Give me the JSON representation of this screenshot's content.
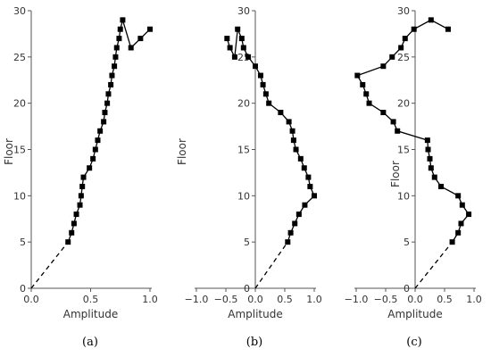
{
  "chart_data": [
    {
      "type": "line",
      "caption": "(a)",
      "xlabel": "Amplitude",
      "ylabel": "Floor",
      "xlim": [
        0,
        1
      ],
      "ylim": [
        0,
        30
      ],
      "xticks": [
        "0.0",
        "0.5",
        "1.0"
      ],
      "yticks": [
        "0",
        "5",
        "10",
        "15",
        "20",
        "25",
        "30"
      ],
      "grid": false,
      "series": [
        {
          "style": "dashed",
          "x": [
            0,
            0.31
          ],
          "y": [
            0,
            5
          ]
        },
        {
          "style": "solid-square-markers",
          "x": [
            0.31,
            0.34,
            0.36,
            0.38,
            0.41,
            0.42,
            0.43,
            0.44,
            0.49,
            0.52,
            0.54,
            0.56,
            0.58,
            0.61,
            0.62,
            0.64,
            0.65,
            0.67,
            0.68,
            0.7,
            0.71,
            0.72,
            0.74,
            0.75,
            0.77,
            0.84,
            0.92,
            1.0
          ],
          "y": [
            5,
            6,
            7,
            8,
            9,
            10,
            11,
            12,
            13,
            14,
            15,
            16,
            17,
            18,
            19,
            20,
            21,
            22,
            23,
            24,
            25,
            26,
            27,
            28,
            29,
            26,
            27,
            28
          ]
        }
      ]
    },
    {
      "type": "line",
      "caption": "(b)",
      "xlabel": "Amplitude",
      "ylabel": "Floor",
      "xlim": [
        -1,
        1
      ],
      "ylim": [
        0,
        30
      ],
      "xticks": [
        "−1.0",
        "−0.5",
        "0.0",
        "0.5",
        "1.0"
      ],
      "yticks": [
        "0",
        "5",
        "10",
        "15",
        "20",
        "25",
        "30"
      ],
      "grid": false,
      "series": [
        {
          "style": "dashed",
          "x": [
            0,
            0.55
          ],
          "y": [
            0,
            5
          ]
        },
        {
          "style": "solid-square-markers",
          "x": [
            0.55,
            0.6,
            0.67,
            0.74,
            0.84,
            1.0,
            0.93,
            0.9,
            0.83,
            0.77,
            0.69,
            0.65,
            0.63,
            0.57,
            0.43,
            0.23,
            0.18,
            0.13,
            0.09,
            0.0,
            -0.12,
            -0.2,
            -0.23,
            -0.3,
            -0.35,
            -0.43,
            -0.48
          ],
          "y": [
            5,
            6,
            7,
            8,
            9,
            10,
            11,
            12,
            13,
            14,
            15,
            16,
            17,
            18,
            19,
            20,
            21,
            22,
            23,
            24,
            25,
            26,
            27,
            28,
            25,
            26,
            27
          ]
        }
      ]
    },
    {
      "type": "line",
      "caption": "(c)",
      "xlabel": "Amplitude",
      "ylabel": "Floor",
      "xlim": [
        -1,
        1
      ],
      "ylim": [
        0,
        30
      ],
      "xticks": [
        "−1.0",
        "−0.5",
        "0.0",
        "0.5",
        "1.0"
      ],
      "yticks": [
        "0",
        "5",
        "10",
        "15",
        "20",
        "25",
        "30"
      ],
      "grid": false,
      "series": [
        {
          "style": "dashed",
          "x": [
            0,
            0.63
          ],
          "y": [
            0,
            5
          ]
        },
        {
          "style": "solid-square-markers",
          "x": [
            0.63,
            0.73,
            0.78,
            0.91,
            0.8,
            0.73,
            0.44,
            0.33,
            0.27,
            0.25,
            0.22,
            0.21,
            -0.3,
            -0.37,
            -0.54,
            -0.78,
            -0.83,
            -0.89,
            -0.98,
            -0.54,
            -0.39,
            -0.24,
            -0.17,
            -0.02,
            0.27,
            0.56
          ],
          "y": [
            5,
            6,
            7,
            8,
            9,
            10,
            11,
            12,
            13,
            14,
            15,
            16,
            17,
            18,
            19,
            20,
            21,
            22,
            23,
            24,
            25,
            26,
            27,
            28,
            29,
            28
          ]
        }
      ]
    }
  ]
}
